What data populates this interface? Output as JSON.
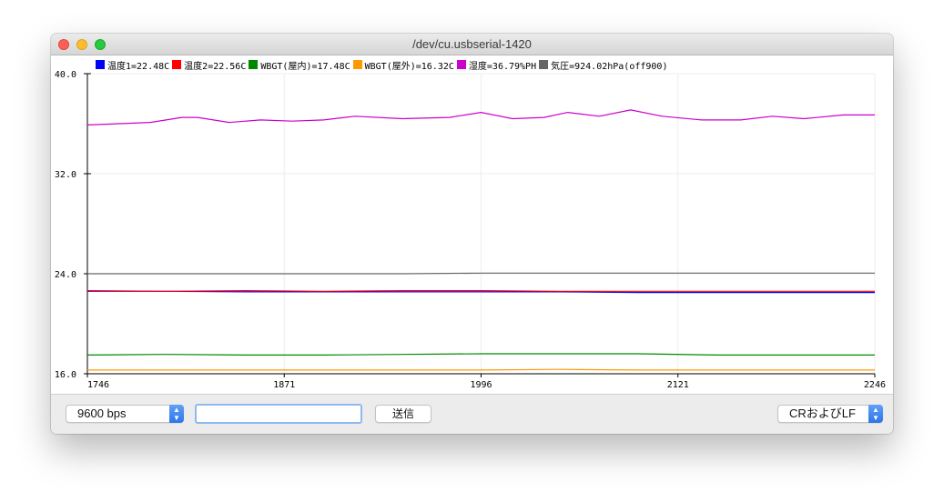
{
  "window": {
    "title": "/dev/cu.usbserial-1420"
  },
  "legend": [
    {
      "label": "温度1=22.48C",
      "color": "#0000ff"
    },
    {
      "label": "温度2=22.56C",
      "color": "#ff0000"
    },
    {
      "label": "WBGT(屋内)=17.48C",
      "color": "#008800"
    },
    {
      "label": "WBGT(屋外)=16.32C",
      "color": "#ff9900"
    },
    {
      "label": "湿度=36.79%PH",
      "color": "#cc00cc"
    },
    {
      "label": "気圧=924.02hPa(off900)",
      "color": "#666666"
    }
  ],
  "chart_data": {
    "type": "line",
    "xlim": [
      1746,
      2246
    ],
    "ylim": [
      16.0,
      40.0
    ],
    "x_ticks": [
      "1746",
      "1871",
      "1996",
      "2121",
      "2246"
    ],
    "y_ticks": [
      "40.0",
      "32.0",
      "24.0",
      "16.0"
    ],
    "grid": true,
    "series": [
      {
        "name": "温度1=22.48C",
        "color": "#0000ff",
        "x": [
          1746,
          1796,
          1846,
          1896,
          1946,
          1996,
          2046,
          2096,
          2146,
          2196,
          2246
        ],
        "y": [
          22.6,
          22.6,
          22.55,
          22.55,
          22.55,
          22.55,
          22.55,
          22.5,
          22.5,
          22.5,
          22.5
        ]
      },
      {
        "name": "温度2=22.56C",
        "color": "#ff0000",
        "x": [
          1746,
          1796,
          1846,
          1896,
          1946,
          1996,
          2046,
          2096,
          2146,
          2196,
          2246
        ],
        "y": [
          22.65,
          22.6,
          22.65,
          22.6,
          22.65,
          22.65,
          22.6,
          22.6,
          22.6,
          22.6,
          22.6
        ]
      },
      {
        "name": "WBGT(屋内)=17.48C",
        "color": "#008800",
        "x": [
          1746,
          1796,
          1846,
          1896,
          1946,
          1996,
          2046,
          2096,
          2146,
          2196,
          2246
        ],
        "y": [
          17.5,
          17.55,
          17.5,
          17.5,
          17.55,
          17.6,
          17.6,
          17.6,
          17.5,
          17.5,
          17.5
        ]
      },
      {
        "name": "WBGT(屋外)=16.32C",
        "color": "#ff9900",
        "x": [
          1746,
          1796,
          1846,
          1896,
          1946,
          1996,
          2046,
          2096,
          2146,
          2196,
          2246
        ],
        "y": [
          16.3,
          16.3,
          16.3,
          16.3,
          16.3,
          16.3,
          16.35,
          16.3,
          16.3,
          16.3,
          16.3
        ]
      },
      {
        "name": "湿度=36.79%PH",
        "color": "#cc00cc",
        "x": [
          1746,
          1766,
          1786,
          1806,
          1816,
          1836,
          1856,
          1876,
          1896,
          1916,
          1946,
          1976,
          1996,
          2016,
          2036,
          2051,
          2071,
          2091,
          2111,
          2136,
          2161,
          2181,
          2201,
          2226,
          2246
        ],
        "y": [
          35.9,
          36.0,
          36.1,
          36.5,
          36.5,
          36.1,
          36.3,
          36.2,
          36.3,
          36.6,
          36.4,
          36.5,
          36.9,
          36.4,
          36.5,
          36.9,
          36.6,
          37.1,
          36.6,
          36.3,
          36.3,
          36.6,
          36.4,
          36.7,
          36.7
        ]
      },
      {
        "name": "気圧=924.02hPa(off900)",
        "color": "#666666",
        "x": [
          1746,
          1796,
          1846,
          1896,
          1946,
          1996,
          2046,
          2096,
          2146,
          2196,
          2246
        ],
        "y": [
          24.0,
          24.0,
          24.0,
          24.0,
          24.0,
          24.05,
          24.05,
          24.05,
          24.05,
          24.05,
          24.05
        ]
      }
    ]
  },
  "toolbar": {
    "baud_rate": "9600 bps",
    "input_value": "",
    "send_label": "送信",
    "line_ending": "CRおよびLF"
  }
}
